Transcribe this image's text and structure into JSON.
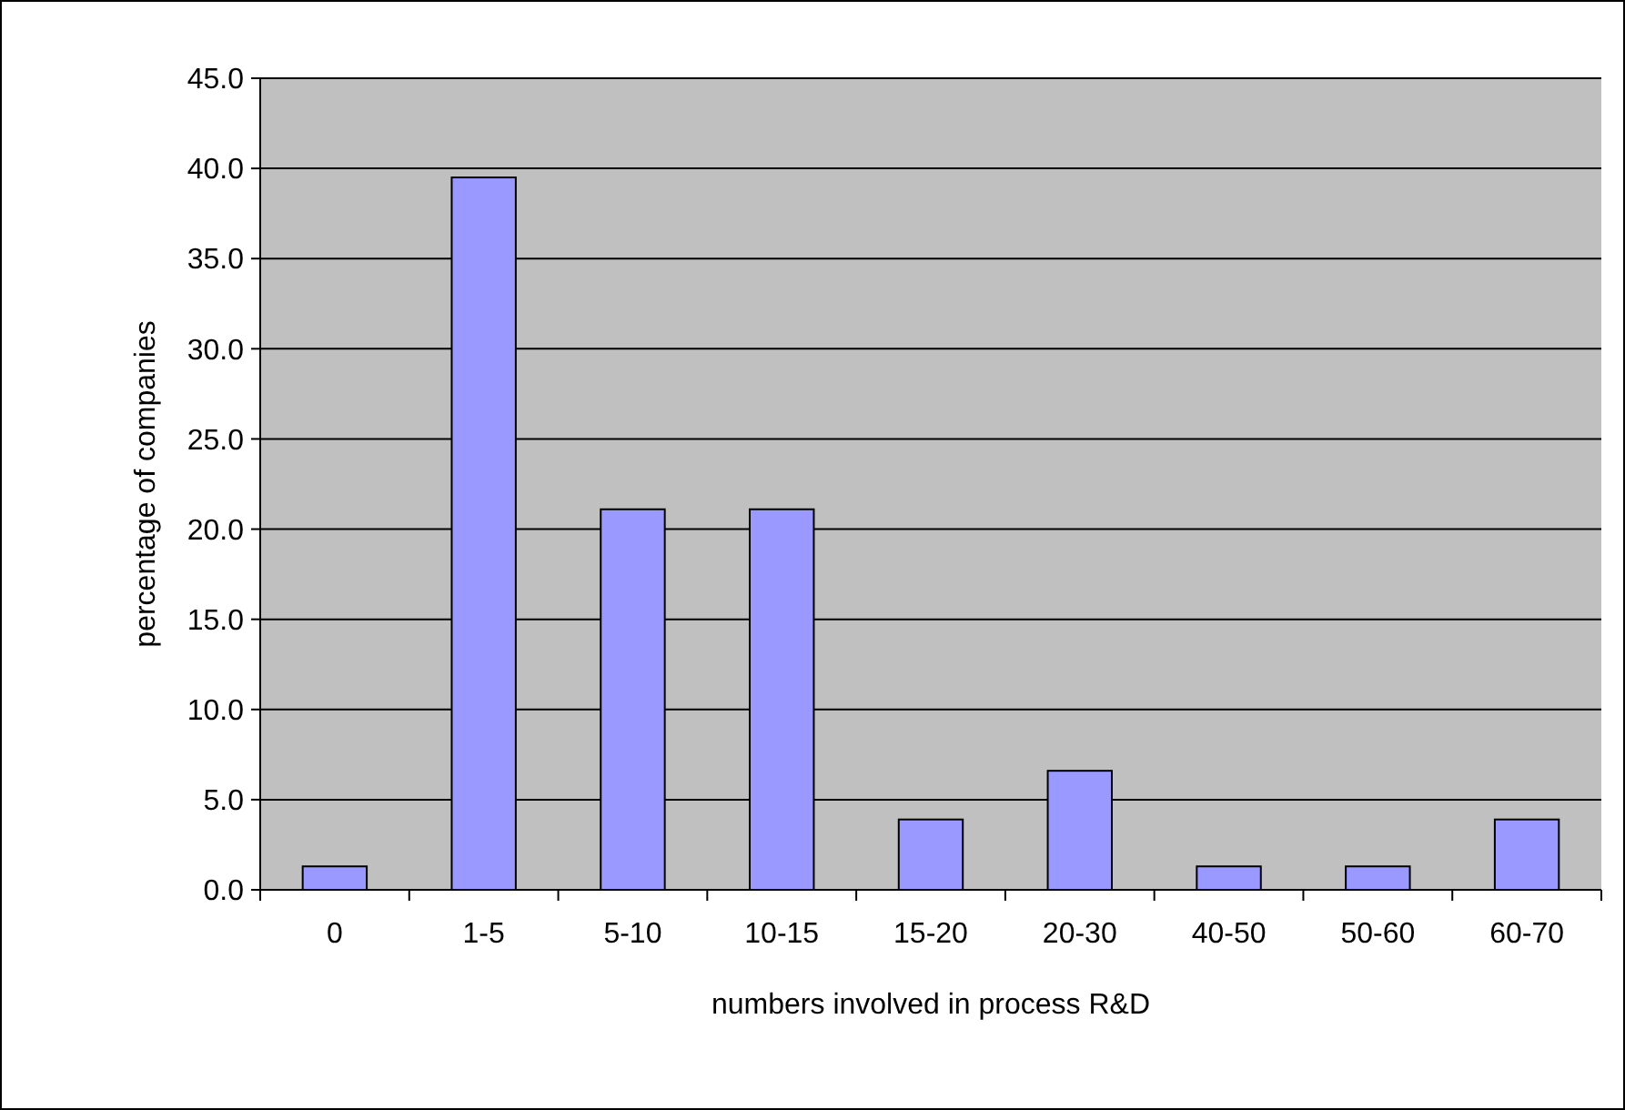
{
  "chart_data": {
    "type": "bar",
    "xlabel": "numbers involved in process R&D",
    "ylabel": "percentage of companies",
    "categories": [
      "0",
      "1-5",
      "5-10",
      "10-15",
      "15-20",
      "20-30",
      "40-50",
      "50-60",
      "60-70"
    ],
    "values": [
      1.3,
      39.5,
      21.1,
      21.1,
      3.9,
      6.6,
      1.3,
      1.3,
      3.9
    ],
    "color": "#9999ff",
    "ylim": [
      0,
      45
    ],
    "yticks": [
      {
        "value": 0,
        "label": "0.0"
      },
      {
        "value": 5,
        "label": "5.0"
      },
      {
        "value": 10,
        "label": "10.0"
      },
      {
        "value": 15,
        "label": "15.0"
      },
      {
        "value": 20,
        "label": "20.0"
      },
      {
        "value": 25,
        "label": "25.0"
      },
      {
        "value": 30,
        "label": "30.0"
      },
      {
        "value": 35,
        "label": "35.0"
      },
      {
        "value": 40,
        "label": "40.0"
      },
      {
        "value": 45,
        "label": "45.0"
      }
    ],
    "grid": "y"
  }
}
